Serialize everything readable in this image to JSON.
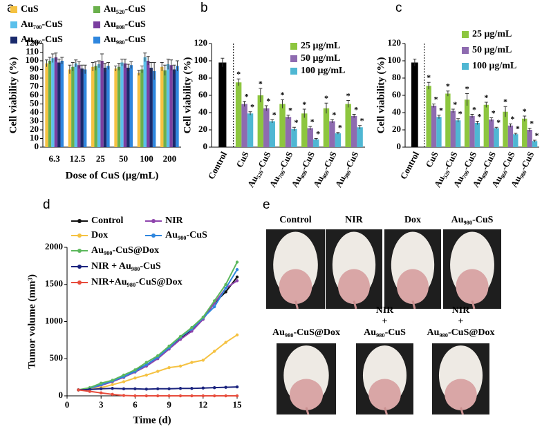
{
  "chart_data": [
    {
      "type": "bar",
      "label": "a",
      "y_label": "Cell viability (%)",
      "x_label": "Dose of CuS (μg/mL)",
      "categories": [
        "6.3",
        "12.5",
        "25",
        "50",
        "100",
        "200"
      ],
      "ylim": [
        0,
        120
      ],
      "yticks": [
        0,
        10,
        20,
        30,
        40,
        50,
        60,
        70,
        80,
        90,
        100,
        110,
        120
      ],
      "series": [
        {
          "name": "CuS",
          "color": "#f5c242",
          "values": [
            97,
            90,
            93,
            91,
            86,
            93
          ],
          "errors": [
            4,
            5,
            5,
            3,
            3,
            5
          ]
        },
        {
          "name": "Au₅₂₀-CuS",
          "color": "#6ab04c",
          "values": [
            100,
            93,
            94,
            93,
            90,
            89
          ],
          "errors": [
            4,
            5,
            5,
            4,
            4,
            6
          ]
        },
        {
          "name": "Au₇₀₀-CuS",
          "color": "#5bc0eb",
          "values": [
            103,
            97,
            96,
            98,
            104,
            96
          ],
          "errors": [
            5,
            4,
            4,
            4,
            5,
            6
          ]
        },
        {
          "name": "Au₈₀₈-CuS",
          "color": "#7b3fa0",
          "values": [
            104,
            95,
            100,
            97,
            100,
            95
          ],
          "errors": [
            5,
            4,
            8,
            5,
            5,
            6
          ]
        },
        {
          "name": "Au₈₆₀-CuS",
          "color": "#1a2a6c",
          "values": [
            98,
            91,
            92,
            92,
            92,
            90
          ],
          "errors": [
            4,
            4,
            5,
            4,
            6,
            5
          ]
        },
        {
          "name": "Au₉₈₀-CuS",
          "color": "#2e86de",
          "values": [
            100,
            90,
            94,
            95,
            88,
            94
          ],
          "errors": [
            4,
            5,
            4,
            4,
            10,
            6
          ]
        }
      ]
    },
    {
      "type": "bar",
      "label": "b",
      "y_label": "Cell viability (%)",
      "categories": [
        "Control",
        "CuS",
        "Au₅₂₀-CuS",
        "Au₇₀₀-CuS",
        "Au₈₀₈-CuS",
        "Au₈₆₀-CuS",
        "Au₉₈₀-CuS"
      ],
      "control_value": 98,
      "control_error": 5,
      "control_color": "#000000",
      "marker": "*",
      "ylim": [
        0,
        120
      ],
      "yticks": [
        0,
        20,
        40,
        60,
        80,
        100,
        120
      ],
      "series": [
        {
          "name": "25 μg/mL",
          "color": "#8dc63f",
          "values": [
            null,
            75,
            60,
            50,
            39,
            45,
            50
          ],
          "errors": [
            null,
            4,
            8,
            5,
            5,
            6,
            4
          ]
        },
        {
          "name": "50 μg/mL",
          "color": "#8e6bb0",
          "values": [
            null,
            50,
            45,
            35,
            22,
            30,
            36
          ],
          "errors": [
            null,
            3,
            3,
            2,
            2,
            2,
            2
          ]
        },
        {
          "name": "100 μg/mL",
          "color": "#4fb7d3",
          "values": [
            null,
            39,
            30,
            21,
            9,
            16,
            23
          ],
          "errors": [
            null,
            2,
            2,
            2,
            1,
            1,
            2
          ]
        }
      ]
    },
    {
      "type": "bar",
      "label": "c",
      "y_label": "Cell viability (%)",
      "categories": [
        "Control",
        "CuS",
        "Au₅₂₀-CuS",
        "Au₇₀₀-CuS",
        "Au₈₀₈-CuS",
        "Au₈₆₀-CuS",
        "Au₉₈₀-CuS"
      ],
      "control_value": 98,
      "control_error": 4,
      "control_color": "#000000",
      "marker": "*",
      "ylim": [
        0,
        120
      ],
      "yticks": [
        0,
        20,
        40,
        60,
        80,
        100,
        120
      ],
      "series": [
        {
          "name": "25 μg/mL",
          "color": "#8dc63f",
          "values": [
            null,
            71,
            62,
            55,
            49,
            41,
            33
          ],
          "errors": [
            null,
            4,
            3,
            7,
            3,
            6,
            3
          ]
        },
        {
          "name": "50 μg/mL",
          "color": "#8e6bb0",
          "values": [
            null,
            48,
            42,
            36,
            32,
            25,
            20
          ],
          "errors": [
            null,
            2,
            2,
            2,
            2,
            2,
            2
          ]
        },
        {
          "name": "100 μg/mL",
          "color": "#4fb7d3",
          "values": [
            null,
            35,
            31,
            28,
            22,
            15,
            7
          ],
          "errors": [
            null,
            2,
            2,
            2,
            1,
            1,
            1
          ]
        }
      ]
    },
    {
      "type": "line",
      "label": "d",
      "y_label": "Tumor volume (mm³)",
      "x_label": "Time (d)",
      "x": [
        1,
        2,
        3,
        4,
        5,
        6,
        7,
        8,
        9,
        10,
        11,
        12,
        13,
        14,
        15
      ],
      "xlim": [
        0,
        15
      ],
      "xticks": [
        0,
        3,
        6,
        9,
        12,
        15
      ],
      "ylim": [
        0,
        2000
      ],
      "yticks": [
        0,
        500,
        1000,
        1500,
        2000
      ],
      "series": [
        {
          "name": "Control",
          "color": "#111111",
          "values": [
            80,
            100,
            150,
            200,
            250,
            340,
            420,
            520,
            650,
            780,
            880,
            1050,
            1250,
            1400,
            1600
          ]
        },
        {
          "name": "NIR",
          "color": "#8e44ad",
          "values": [
            80,
            100,
            140,
            190,
            250,
            320,
            400,
            500,
            630,
            760,
            870,
            1030,
            1250,
            1450,
            1550
          ]
        },
        {
          "name": "Dox",
          "color": "#f5c242",
          "values": [
            80,
            90,
            110,
            150,
            190,
            240,
            280,
            330,
            380,
            400,
            450,
            480,
            600,
            720,
            820
          ]
        },
        {
          "name": "Au₉₈₀-CuS",
          "color": "#2e86de",
          "values": [
            80,
            100,
            150,
            200,
            260,
            330,
            420,
            520,
            650,
            790,
            900,
            1050,
            1200,
            1450,
            1700
          ]
        },
        {
          "name": "Au₉₈₀-CuS@Dox",
          "color": "#5cb85c",
          "values": [
            80,
            110,
            170,
            210,
            280,
            350,
            450,
            540,
            670,
            800,
            920,
            1060,
            1280,
            1500,
            1800
          ]
        },
        {
          "name": "NIR + Au₉₈₀-CuS",
          "color": "#1a237e",
          "values": [
            80,
            85,
            95,
            100,
            95,
            95,
            90,
            95,
            95,
            100,
            100,
            105,
            110,
            115,
            120
          ]
        },
        {
          "name": "NIR+Au₉₈₀-CuS@Dox",
          "color": "#e74c3c",
          "values": [
            80,
            60,
            40,
            20,
            5,
            0,
            0,
            0,
            0,
            0,
            0,
            0,
            0,
            0,
            0
          ]
        }
      ]
    }
  ],
  "photos": {
    "label": "e",
    "top": [
      [
        "Control"
      ],
      [
        "NIR"
      ],
      [
        "Dox"
      ],
      [
        "Au₉₈₀-CuS"
      ]
    ],
    "bottom": [
      [
        "Au₉₈₀-CuS@Dox"
      ],
      [
        "NIR",
        "+",
        "Au₉₈₀-CuS"
      ],
      [
        "NIR",
        "+",
        "Au₉₈₀-CuS@Dox"
      ]
    ]
  }
}
